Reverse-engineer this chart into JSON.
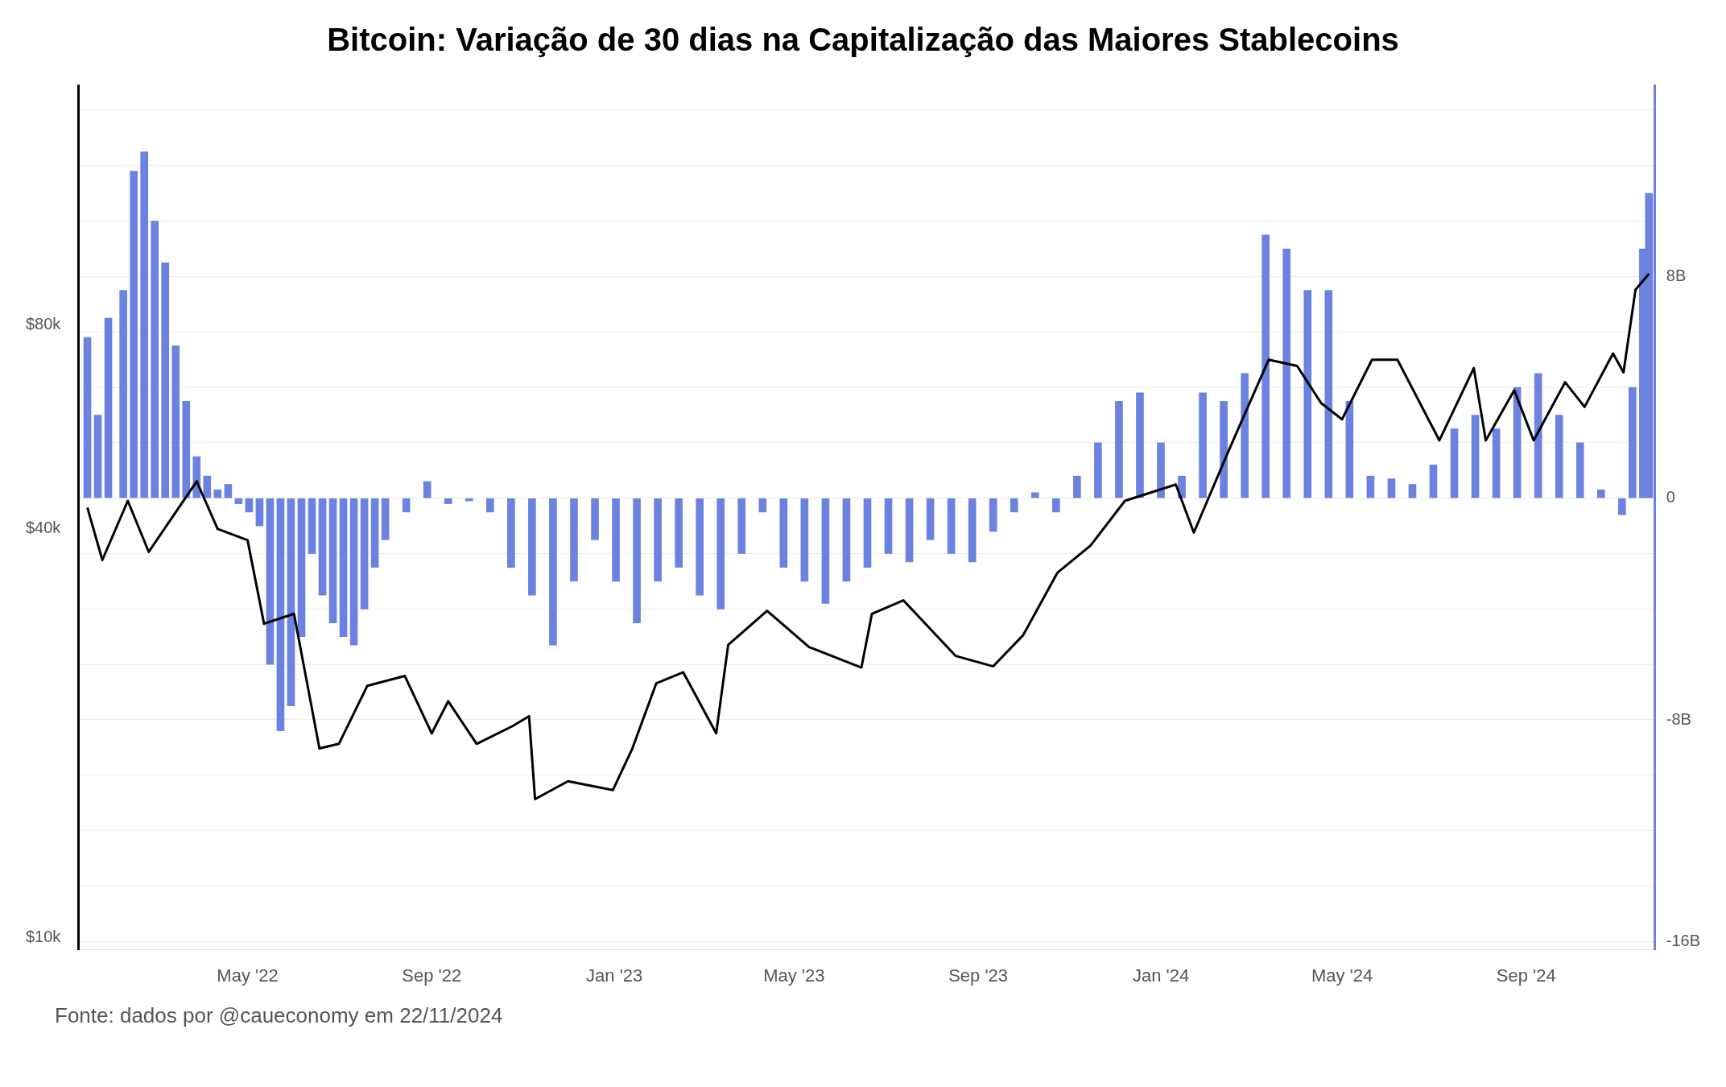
{
  "chart_data": {
    "type": "line",
    "title": "Bitcoin: Variação de 30 dias na Capitalização das Maiores Stablecoins",
    "annotations": [
      "Fonte: dados por @caueconomy em 22/11/2024"
    ],
    "legend": false,
    "grid": "y",
    "log": "y",
    "xlim": [
      "2022-01-08",
      "2024-11-26"
    ],
    "xticks": [
      {
        "value": "2022-05-01",
        "label": "May '22"
      },
      {
        "value": "2022-09-01",
        "label": "Sep '22"
      },
      {
        "value": "2023-01-01",
        "label": "Jan '23"
      },
      {
        "value": "2023-05-01",
        "label": "May '23"
      },
      {
        "value": "2023-09-01",
        "label": "Sep '23"
      },
      {
        "value": "2024-01-01",
        "label": "Jan '24"
      },
      {
        "value": "2024-05-01",
        "label": "May '24"
      },
      {
        "value": "2024-09-01",
        "label": "Sep '24"
      }
    ],
    "ylim": [
      9600,
      180000
    ],
    "yticks": [
      {
        "value": 10000,
        "label": "$10k"
      },
      {
        "value": 40000,
        "label": "$40k"
      },
      {
        "value": 80000,
        "label": "$80k"
      }
    ],
    "y2lim": [
      -16.3,
      14.9
    ],
    "y2ticks": [
      {
        "value": -16,
        "label": "-16B"
      },
      {
        "value": -14,
        "label": null
      },
      {
        "value": -12,
        "label": null
      },
      {
        "value": -10,
        "label": null
      },
      {
        "value": -8,
        "label": "-8B"
      },
      {
        "value": -6,
        "label": null
      },
      {
        "value": -4,
        "label": null
      },
      {
        "value": -2,
        "label": null
      },
      {
        "value": 0,
        "label": "0"
      },
      {
        "value": 2,
        "label": null
      },
      {
        "value": 4,
        "label": null
      },
      {
        "value": 6,
        "label": null
      },
      {
        "value": 8,
        "label": "8B"
      },
      {
        "value": 10,
        "label": null
      },
      {
        "value": 12,
        "label": null
      },
      {
        "value": 14,
        "label": null
      }
    ],
    "series": [
      {
        "type": "bar",
        "axis": "y2",
        "color": "#6b82e0",
        "x": [
          "2022-01-14",
          "2022-01-21",
          "2022-01-28",
          "2022-02-07",
          "2022-02-14",
          "2022-02-21",
          "2022-02-28",
          "2022-03-07",
          "2022-03-14",
          "2022-03-21",
          "2022-03-28",
          "2022-04-04",
          "2022-04-11",
          "2022-04-18",
          "2022-04-25",
          "2022-05-02",
          "2022-05-09",
          "2022-05-16",
          "2022-05-23",
          "2022-05-30",
          "2022-06-06",
          "2022-06-13",
          "2022-06-20",
          "2022-06-27",
          "2022-07-04",
          "2022-07-11",
          "2022-07-18",
          "2022-07-25",
          "2022-08-01",
          "2022-08-15",
          "2022-08-29",
          "2022-09-12",
          "2022-09-26",
          "2022-10-10",
          "2022-10-24",
          "2022-11-07",
          "2022-11-21",
          "2022-12-05",
          "2022-12-19",
          "2023-01-02",
          "2023-01-16",
          "2023-01-30",
          "2023-02-13",
          "2023-02-27",
          "2023-03-13",
          "2023-03-27",
          "2023-04-10",
          "2023-04-24",
          "2023-05-08",
          "2023-05-22",
          "2023-06-05",
          "2023-06-19",
          "2023-07-03",
          "2023-07-17",
          "2023-07-31",
          "2023-08-14",
          "2023-08-28",
          "2023-09-11",
          "2023-09-25",
          "2023-10-09",
          "2023-10-23",
          "2023-11-06",
          "2023-11-20",
          "2023-12-04",
          "2023-12-18",
          "2024-01-01",
          "2024-01-15",
          "2024-01-29",
          "2024-02-12",
          "2024-02-26",
          "2024-03-11",
          "2024-03-25",
          "2024-04-08",
          "2024-04-22",
          "2024-05-06",
          "2024-05-20",
          "2024-06-03",
          "2024-06-17",
          "2024-07-01",
          "2024-07-15",
          "2024-07-29",
          "2024-08-12",
          "2024-08-26",
          "2024-09-09",
          "2024-09-23",
          "2024-10-07",
          "2024-10-21",
          "2024-11-04",
          "2024-11-11",
          "2024-11-18",
          "2024-11-22"
        ],
        "values": [
          5.8,
          3.0,
          6.5,
          7.5,
          11.8,
          12.5,
          10.0,
          8.5,
          5.5,
          3.5,
          1.5,
          0.8,
          0.3,
          0.5,
          -0.2,
          -0.5,
          -1.0,
          -6.0,
          -8.4,
          -7.5,
          -5.0,
          -2.0,
          -3.5,
          -4.5,
          -5.0,
          -5.3,
          -4.0,
          -2.5,
          -1.5,
          -0.5,
          0.6,
          -0.2,
          -0.1,
          -0.5,
          -2.5,
          -3.5,
          -5.3,
          -3.0,
          -1.5,
          -3.0,
          -4.5,
          -3.0,
          -2.5,
          -3.5,
          -4.0,
          -2.0,
          -0.5,
          -2.5,
          -3.0,
          -3.8,
          -3.0,
          -2.5,
          -2.0,
          -2.3,
          -1.5,
          -2.0,
          -2.3,
          -1.2,
          -0.5,
          0.2,
          -0.5,
          0.8,
          2.0,
          3.5,
          3.8,
          2.0,
          0.8,
          3.8,
          3.5,
          4.5,
          9.5,
          9.0,
          7.5,
          7.5,
          3.5,
          0.8,
          0.7,
          0.5,
          1.2,
          2.5,
          3.0,
          2.5,
          4.0,
          4.5,
          3.0,
          2.0,
          0.3,
          -0.6,
          4.0,
          9.0,
          11.0
        ]
      },
      {
        "color": "#000000",
        "x": [
          "2022-01-14",
          "2022-01-24",
          "2022-02-10",
          "2022-02-24",
          "2022-03-28",
          "2022-04-11",
          "2022-05-01",
          "2022-05-12",
          "2022-06-01",
          "2022-06-18",
          "2022-07-01",
          "2022-07-20",
          "2022-08-14",
          "2022-09-01",
          "2022-09-12",
          "2022-10-01",
          "2022-10-25",
          "2022-11-05",
          "2022-11-09",
          "2022-12-01",
          "2022-12-31",
          "2023-01-13",
          "2023-01-29",
          "2023-02-16",
          "2023-03-10",
          "2023-03-18",
          "2023-04-13",
          "2023-05-11",
          "2023-06-15",
          "2023-06-22",
          "2023-07-13",
          "2023-08-17",
          "2023-09-11",
          "2023-10-01",
          "2023-10-24",
          "2023-11-15",
          "2023-12-08",
          "2024-01-11",
          "2024-01-23",
          "2024-02-15",
          "2024-03-13",
          "2024-04-01",
          "2024-04-17",
          "2024-05-01",
          "2024-05-21",
          "2024-06-07",
          "2024-07-05",
          "2024-07-28",
          "2024-08-05",
          "2024-08-24",
          "2024-09-06",
          "2024-09-27",
          "2024-10-10",
          "2024-10-29",
          "2024-11-05",
          "2024-11-13",
          "2024-11-22"
        ],
        "values": [
          43000,
          36000,
          44000,
          37000,
          47000,
          40000,
          38500,
          29000,
          30000,
          19000,
          19300,
          23500,
          24300,
          20000,
          22300,
          19300,
          20500,
          21200,
          16000,
          17000,
          16500,
          19000,
          23700,
          24600,
          20000,
          27000,
          30300,
          26800,
          25000,
          30000,
          31400,
          26000,
          25100,
          27900,
          34500,
          37800,
          44000,
          46500,
          39500,
          52000,
          71000,
          69500,
          61300,
          58000,
          71000,
          71000,
          54000,
          69000,
          54000,
          64000,
          54000,
          65800,
          60500,
          72500,
          68000,
          90000,
          95000
        ]
      }
    ]
  }
}
